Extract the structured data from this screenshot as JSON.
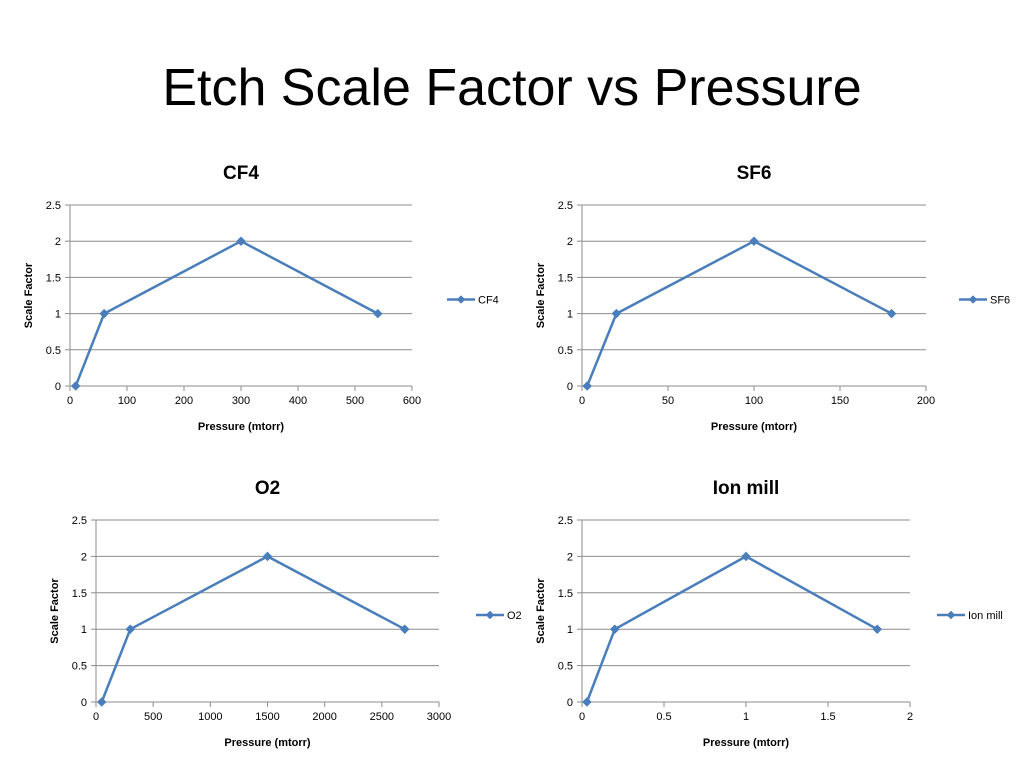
{
  "slide": {
    "title": "Etch Scale Factor vs Pressure"
  },
  "colors": {
    "series": "#4a7ebb",
    "grid": "#8c8c8c"
  },
  "chart_data": [
    {
      "type": "line",
      "title": "CF4",
      "xlabel": "Pressure (mtorr)",
      "ylabel": "Scale Factor",
      "xlim": [
        0,
        600
      ],
      "xticks": [
        0,
        100,
        200,
        300,
        400,
        500,
        600
      ],
      "ylim": [
        0,
        2.5
      ],
      "yticks": [
        0,
        0.5,
        1,
        1.5,
        2,
        2.5
      ],
      "ytick_labels": [
        "0",
        "0.5",
        "1",
        "1.5",
        "2",
        "2.5"
      ],
      "grid": "horizontal",
      "legend": "right",
      "series": [
        {
          "name": "CF4",
          "x": [
            10,
            60,
            300,
            540
          ],
          "y": [
            0,
            1,
            2,
            1
          ]
        }
      ]
    },
    {
      "type": "line",
      "title": "SF6",
      "xlabel": "Pressure (mtorr)",
      "ylabel": "Scale Factor",
      "xlim": [
        0,
        200
      ],
      "xticks": [
        0,
        50,
        100,
        150,
        200
      ],
      "ylim": [
        0,
        2.5
      ],
      "yticks": [
        0,
        0.5,
        1,
        1.5,
        2,
        2.5
      ],
      "ytick_labels": [
        "0",
        "0.5",
        "1",
        "1.5",
        "2",
        "2.5"
      ],
      "grid": "horizontal",
      "legend": "right",
      "series": [
        {
          "name": "SF6",
          "x": [
            3,
            20,
            100,
            180
          ],
          "y": [
            0,
            1,
            2,
            1
          ]
        }
      ]
    },
    {
      "type": "line",
      "title": "O2",
      "xlabel": "Pressure (mtorr)",
      "ylabel": "Scale Factor",
      "xlim": [
        0,
        3000
      ],
      "xticks": [
        0,
        500,
        1000,
        1500,
        2000,
        2500,
        3000
      ],
      "ylim": [
        0,
        2.5
      ],
      "yticks": [
        0,
        0.5,
        1,
        1.5,
        2,
        2.5
      ],
      "ytick_labels": [
        "0",
        "0.5",
        "1",
        "1.5",
        "2",
        "2.5"
      ],
      "grid": "horizontal",
      "legend": "right",
      "series": [
        {
          "name": "O2",
          "x": [
            50,
            300,
            1500,
            2700
          ],
          "y": [
            0,
            1,
            2,
            1
          ]
        }
      ]
    },
    {
      "type": "line",
      "title": "Ion mill",
      "xlabel": "Pressure (mtorr)",
      "ylabel": "Scale Factor",
      "xlim": [
        0,
        2
      ],
      "xticks": [
        0,
        0.5,
        1,
        1.5,
        2
      ],
      "ylim": [
        0,
        2.5
      ],
      "yticks": [
        0,
        0.5,
        1,
        1.5,
        2,
        2.5
      ],
      "ytick_labels": [
        "0",
        "0.5",
        "1",
        "1.5",
        "2",
        "2.5"
      ],
      "grid": "horizontal",
      "legend": "right",
      "series": [
        {
          "name": "Ion mill",
          "x": [
            0.03,
            0.2,
            1,
            1.8
          ],
          "y": [
            0,
            1,
            2,
            1
          ]
        }
      ]
    }
  ]
}
